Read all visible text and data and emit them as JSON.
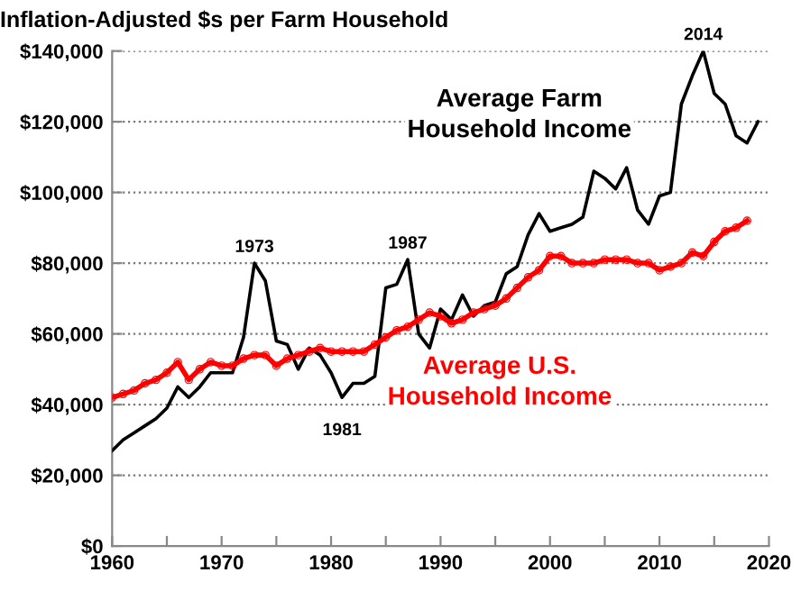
{
  "chart_data": {
    "type": "line",
    "title": "Inflation-Adjusted $s per Farm Household",
    "xlim": [
      1960,
      2020
    ],
    "xticks": [
      1960,
      {
        "value": 1965,
        "label": null
      },
      1970,
      {
        "value": 1975,
        "label": null
      },
      1980,
      {
        "value": 1985,
        "label": null
      },
      1990,
      {
        "value": 1995,
        "label": null
      },
      2000,
      {
        "value": 2005,
        "label": null
      },
      2010,
      {
        "value": 2015,
        "label": null
      },
      2020
    ],
    "ylim": [
      0,
      140000
    ],
    "yticks": [
      {
        "value": 0,
        "label": "$0"
      },
      {
        "value": 20000,
        "label": "$20,000"
      },
      {
        "value": 40000,
        "label": "$40,000"
      },
      {
        "value": 60000,
        "label": "$60,000"
      },
      {
        "value": 80000,
        "label": "$80,000"
      },
      {
        "value": 100000,
        "label": "$100,000"
      },
      {
        "value": 120000,
        "label": "$120,000"
      },
      {
        "value": 140000,
        "label": "$140,000"
      }
    ],
    "grid": "y",
    "series": [
      {
        "name": "Average Farm Household Income",
        "color": "#000000",
        "x": [
          1960,
          1961,
          1962,
          1963,
          1964,
          1965,
          1966,
          1967,
          1968,
          1969,
          1970,
          1971,
          1972,
          1973,
          1974,
          1975,
          1976,
          1977,
          1978,
          1979,
          1980,
          1981,
          1982,
          1983,
          1984,
          1985,
          1986,
          1987,
          1988,
          1989,
          1990,
          1991,
          1992,
          1993,
          1994,
          1995,
          1996,
          1997,
          1998,
          1999,
          2000,
          2001,
          2002,
          2003,
          2004,
          2005,
          2006,
          2007,
          2008,
          2009,
          2010,
          2011,
          2012,
          2013,
          2014,
          2015,
          2016,
          2017,
          2018,
          2019
        ],
        "values": [
          27000,
          30000,
          32000,
          34000,
          36000,
          39000,
          45000,
          42000,
          45000,
          49000,
          49000,
          49000,
          59000,
          80000,
          75000,
          58000,
          57000,
          50000,
          56000,
          54000,
          49000,
          42000,
          46000,
          46000,
          48000,
          73000,
          74000,
          81000,
          60000,
          56000,
          67000,
          64000,
          71000,
          65000,
          68000,
          69000,
          77000,
          79000,
          88000,
          94000,
          89000,
          90000,
          91000,
          93000,
          106000,
          104000,
          101000,
          107000,
          95000,
          91000,
          99000,
          100000,
          125000,
          133000,
          140000,
          128000,
          125000,
          116000,
          114000,
          120000
        ]
      },
      {
        "name": "Average U.S. Household Income",
        "color": "#ff0000",
        "marker": "circle",
        "x": [
          1960,
          1961,
          1962,
          1963,
          1964,
          1965,
          1966,
          1967,
          1968,
          1969,
          1970,
          1971,
          1972,
          1973,
          1974,
          1975,
          1976,
          1977,
          1978,
          1979,
          1980,
          1981,
          1982,
          1983,
          1984,
          1985,
          1986,
          1987,
          1988,
          1989,
          1990,
          1991,
          1992,
          1993,
          1994,
          1995,
          1996,
          1997,
          1998,
          1999,
          2000,
          2001,
          2002,
          2003,
          2004,
          2005,
          2006,
          2007,
          2008,
          2009,
          2010,
          2011,
          2012,
          2013,
          2014,
          2015,
          2016,
          2017,
          2018
        ],
        "values": [
          42000,
          43000,
          44000,
          46000,
          47000,
          49000,
          52000,
          47000,
          50000,
          52000,
          51000,
          51000,
          53000,
          54000,
          54000,
          51000,
          53000,
          54000,
          55000,
          56000,
          55000,
          55000,
          55000,
          55000,
          57000,
          59000,
          61000,
          62000,
          64000,
          66000,
          65000,
          63000,
          64000,
          66000,
          67000,
          68000,
          70000,
          73000,
          76000,
          78000,
          82000,
          82000,
          80000,
          80000,
          80000,
          81000,
          81000,
          81000,
          80000,
          80000,
          78000,
          79000,
          80000,
          83000,
          82000,
          86000,
          89000,
          90000,
          92000
        ]
      }
    ],
    "annotations": [
      {
        "text": "1973",
        "x": 1973,
        "y": 80000
      },
      {
        "text": "1987",
        "x": 1987,
        "y": 81000
      },
      {
        "text": "2014",
        "x": 2014,
        "y": 140000
      },
      {
        "text": "1981",
        "x": 1981,
        "y": 42000
      }
    ]
  }
}
